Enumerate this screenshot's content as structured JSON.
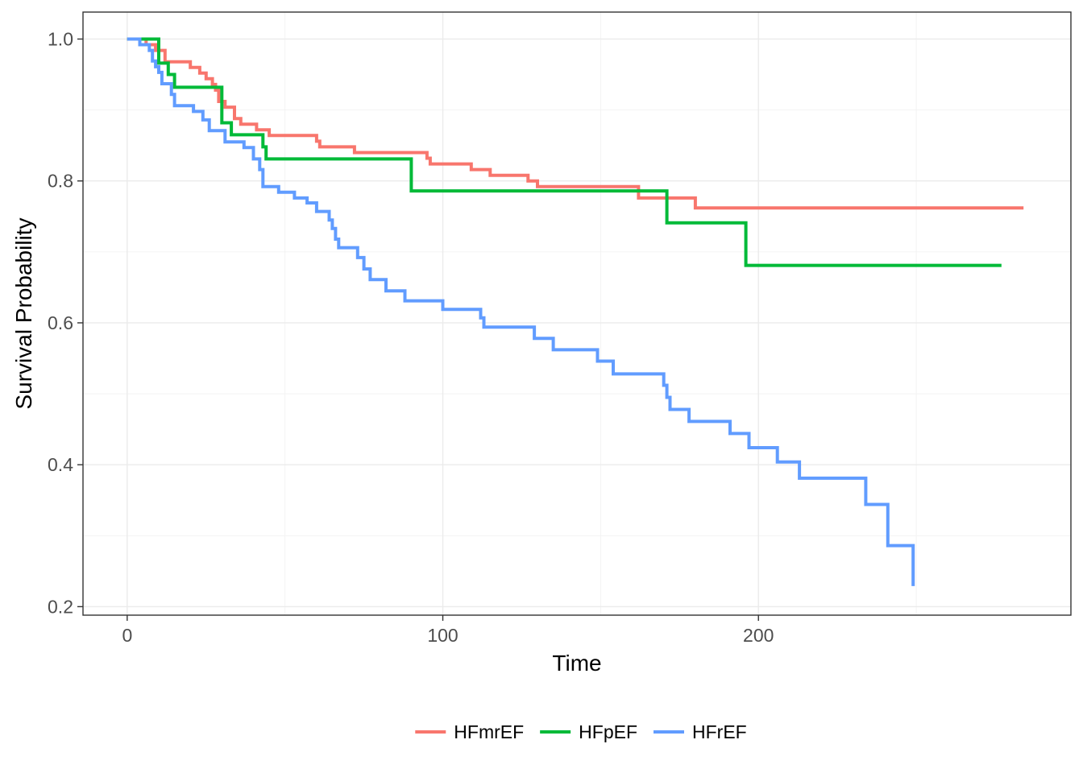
{
  "chart_data": {
    "type": "line",
    "step": true,
    "title": "",
    "xlabel": "Time",
    "ylabel": "Survival Probability",
    "xlim": [
      -14,
      299
    ],
    "ylim": [
      0.188,
      1.038
    ],
    "x_ticks": [
      0,
      100,
      200
    ],
    "x_tick_labels": [
      "0",
      "100",
      "200"
    ],
    "y_ticks": [
      0.2,
      0.4,
      0.6,
      0.8,
      1.0
    ],
    "y_tick_labels": [
      "0.2",
      "0.4",
      "0.6",
      "0.8",
      "1.0"
    ],
    "grid": true,
    "legend_position": "bottom",
    "series": [
      {
        "name": "HFmrEF",
        "color": "#f8766d",
        "x": [
          0,
          6,
          9,
          12,
          20,
          23,
          25,
          27,
          28,
          29,
          31,
          34,
          36,
          41,
          45,
          60,
          61,
          72,
          95,
          96,
          100,
          109,
          115,
          127,
          130,
          162,
          180,
          284
        ],
        "y": [
          1.0,
          0.992,
          0.984,
          0.968,
          0.96,
          0.952,
          0.944,
          0.936,
          0.928,
          0.912,
          0.904,
          0.888,
          0.88,
          0.872,
          0.864,
          0.856,
          0.848,
          0.84,
          0.832,
          0.824,
          0.824,
          0.816,
          0.808,
          0.8,
          0.792,
          0.776,
          0.762,
          0.762
        ]
      },
      {
        "name": "HFpEF",
        "color": "#00ba38",
        "x": [
          0,
          5,
          10,
          13,
          15,
          29,
          30,
          33,
          43,
          44,
          90,
          171,
          196,
          277
        ],
        "y": [
          1.0,
          1.0,
          0.966,
          0.95,
          0.932,
          0.932,
          0.882,
          0.865,
          0.848,
          0.831,
          0.786,
          0.741,
          0.681,
          0.681
        ]
      },
      {
        "name": "HFrEF",
        "color": "#619cff",
        "x": [
          0,
          4,
          7,
          8,
          9,
          10,
          11,
          14,
          15,
          21,
          24,
          26,
          31,
          37,
          40,
          42,
          43,
          48,
          53,
          57,
          60,
          64,
          65,
          66,
          67,
          73,
          75,
          77,
          82,
          88,
          100,
          112,
          113,
          129,
          135,
          149,
          154,
          170,
          171,
          172,
          178,
          191,
          197,
          206,
          213,
          234,
          241,
          249
        ],
        "y": [
          1.0,
          0.992,
          0.984,
          0.969,
          0.961,
          0.953,
          0.937,
          0.922,
          0.906,
          0.898,
          0.886,
          0.871,
          0.855,
          0.847,
          0.831,
          0.816,
          0.792,
          0.784,
          0.776,
          0.769,
          0.757,
          0.745,
          0.733,
          0.718,
          0.706,
          0.692,
          0.676,
          0.661,
          0.645,
          0.631,
          0.619,
          0.607,
          0.594,
          0.578,
          0.562,
          0.546,
          0.528,
          0.512,
          0.495,
          0.478,
          0.461,
          0.444,
          0.424,
          0.404,
          0.381,
          0.344,
          0.286,
          0.229
        ]
      }
    ]
  }
}
